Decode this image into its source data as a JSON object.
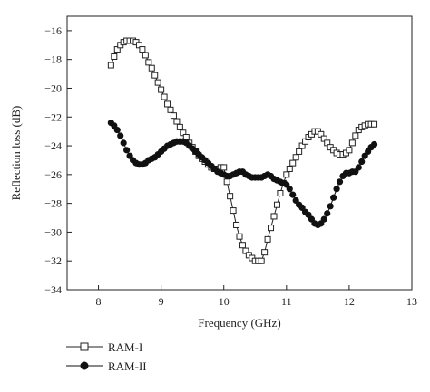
{
  "chart_data": {
    "type": "line",
    "title": "",
    "xlabel": "Frequency (GHz)",
    "ylabel": "Reflection loss (dB)",
    "xlim": [
      7.5,
      13
    ],
    "ylim": [
      -34,
      -15
    ],
    "xticks": [
      8,
      9,
      10,
      11,
      12,
      13
    ],
    "yticks": [
      -34,
      -32,
      -30,
      -28,
      -26,
      -24,
      -22,
      -20,
      -18,
      -16
    ],
    "xtick_labels": [
      "8",
      "9",
      "10",
      "11",
      "12",
      "13"
    ],
    "ytick_labels": [
      "−34",
      "−32",
      "−30",
      "−28",
      "−26",
      "−24",
      "−22",
      "−20",
      "−18",
      "−16"
    ],
    "grid": false,
    "legend_position": "below-left",
    "series": [
      {
        "name": "RAM-I",
        "marker": "open-square",
        "color": "#222222",
        "x": [
          8.2,
          8.25,
          8.3,
          8.35,
          8.4,
          8.45,
          8.5,
          8.55,
          8.6,
          8.65,
          8.7,
          8.75,
          8.8,
          8.85,
          8.9,
          8.95,
          9.0,
          9.05,
          9.1,
          9.15,
          9.2,
          9.25,
          9.3,
          9.35,
          9.4,
          9.45,
          9.5,
          9.55,
          9.6,
          9.65,
          9.7,
          9.75,
          9.8,
          9.85,
          9.9,
          9.95,
          10.0,
          10.05,
          10.1,
          10.15,
          10.2,
          10.25,
          10.3,
          10.35,
          10.4,
          10.45,
          10.5,
          10.55,
          10.6,
          10.65,
          10.7,
          10.75,
          10.8,
          10.85,
          10.9,
          10.95,
          11.0,
          11.05,
          11.1,
          11.15,
          11.2,
          11.25,
          11.3,
          11.35,
          11.4,
          11.45,
          11.5,
          11.55,
          11.6,
          11.65,
          11.7,
          11.75,
          11.8,
          11.85,
          11.9,
          11.95,
          12.0,
          12.05,
          12.1,
          12.15,
          12.2,
          12.25,
          12.3,
          12.35,
          12.4
        ],
        "y": [
          -18.4,
          -17.8,
          -17.3,
          -17.0,
          -16.8,
          -16.7,
          -16.7,
          -16.7,
          -16.8,
          -17.0,
          -17.3,
          -17.7,
          -18.2,
          -18.6,
          -19.1,
          -19.6,
          -20.1,
          -20.6,
          -21.1,
          -21.5,
          -21.9,
          -22.3,
          -22.7,
          -23.1,
          -23.4,
          -23.8,
          -24.1,
          -24.4,
          -24.7,
          -24.9,
          -25.1,
          -25.3,
          -25.5,
          -25.6,
          -25.6,
          -25.5,
          -25.5,
          -26.5,
          -27.5,
          -28.5,
          -29.5,
          -30.3,
          -30.9,
          -31.3,
          -31.6,
          -31.8,
          -32.0,
          -32.0,
          -32.0,
          -31.4,
          -30.5,
          -29.7,
          -28.9,
          -28.1,
          -27.3,
          -26.6,
          -26.0,
          -25.6,
          -25.2,
          -24.8,
          -24.4,
          -24.0,
          -23.7,
          -23.4,
          -23.2,
          -23.0,
          -23.0,
          -23.2,
          -23.5,
          -23.8,
          -24.1,
          -24.3,
          -24.5,
          -24.6,
          -24.6,
          -24.5,
          -24.3,
          -23.8,
          -23.3,
          -22.9,
          -22.7,
          -22.6,
          -22.5,
          -22.5,
          -22.5
        ]
      },
      {
        "name": "RAM-II",
        "marker": "filled-circle",
        "color": "#111111",
        "x": [
          8.2,
          8.25,
          8.3,
          8.35,
          8.4,
          8.45,
          8.5,
          8.55,
          8.6,
          8.65,
          8.7,
          8.75,
          8.8,
          8.85,
          8.9,
          8.95,
          9.0,
          9.05,
          9.1,
          9.15,
          9.2,
          9.25,
          9.3,
          9.35,
          9.4,
          9.45,
          9.5,
          9.55,
          9.6,
          9.65,
          9.7,
          9.75,
          9.8,
          9.85,
          9.9,
          9.95,
          10.0,
          10.05,
          10.1,
          10.15,
          10.2,
          10.25,
          10.3,
          10.35,
          10.4,
          10.45,
          10.5,
          10.55,
          10.6,
          10.65,
          10.7,
          10.75,
          10.8,
          10.85,
          10.9,
          10.95,
          11.0,
          11.05,
          11.1,
          11.15,
          11.2,
          11.25,
          11.3,
          11.35,
          11.4,
          11.45,
          11.5,
          11.55,
          11.6,
          11.65,
          11.7,
          11.75,
          11.8,
          11.85,
          11.9,
          11.95,
          12.0,
          12.05,
          12.1,
          12.15,
          12.2,
          12.25,
          12.3,
          12.35,
          12.4
        ],
        "y": [
          -22.4,
          -22.6,
          -22.9,
          -23.3,
          -23.8,
          -24.3,
          -24.7,
          -25.0,
          -25.2,
          -25.3,
          -25.3,
          -25.2,
          -25.0,
          -24.9,
          -24.8,
          -24.6,
          -24.4,
          -24.2,
          -24.0,
          -23.9,
          -23.8,
          -23.7,
          -23.7,
          -23.7,
          -23.8,
          -24.0,
          -24.2,
          -24.4,
          -24.6,
          -24.8,
          -25.0,
          -25.2,
          -25.4,
          -25.6,
          -25.8,
          -25.9,
          -26.0,
          -26.1,
          -26.1,
          -26.0,
          -25.9,
          -25.8,
          -25.8,
          -26.0,
          -26.1,
          -26.2,
          -26.2,
          -26.2,
          -26.2,
          -26.1,
          -26.0,
          -26.1,
          -26.3,
          -26.4,
          -26.5,
          -26.6,
          -26.7,
          -27.0,
          -27.4,
          -27.8,
          -28.1,
          -28.3,
          -28.6,
          -28.8,
          -29.1,
          -29.4,
          -29.5,
          -29.4,
          -29.1,
          -28.7,
          -28.2,
          -27.6,
          -27.0,
          -26.5,
          -26.1,
          -25.9,
          -25.9,
          -25.8,
          -25.8,
          -25.5,
          -25.1,
          -24.7,
          -24.4,
          -24.1,
          -23.9
        ]
      }
    ]
  }
}
